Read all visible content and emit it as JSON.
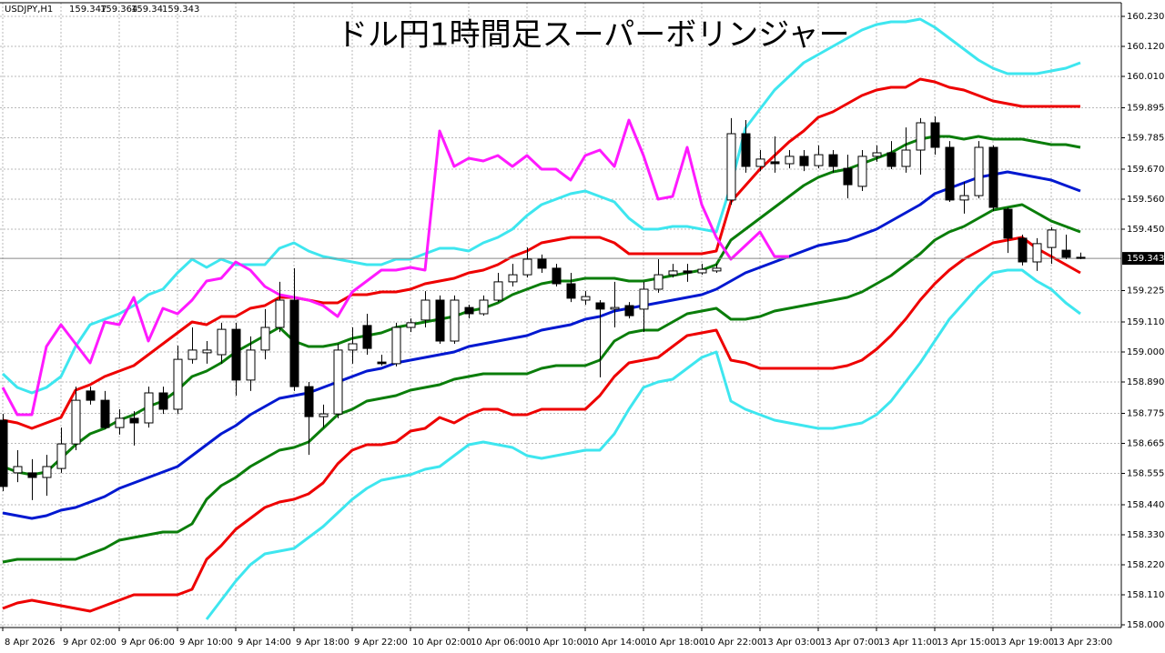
{
  "chart_data": {
    "type": "candlestick",
    "title": "ドル円1時間足スーパーボリンジャー",
    "symbol": "USDJPY,H1",
    "up_color": "#ffffff",
    "down_color": "#000000",
    "grid": true,
    "categories": [
      "8 Apr 2026",
      null,
      null,
      null,
      "9 Apr 02:00",
      null,
      null,
      null,
      "9 Apr 06:00",
      null,
      null,
      null,
      "9 Apr 10:00",
      null,
      null,
      null,
      "9 Apr 14:00",
      null,
      null,
      null,
      "9 Apr 18:00",
      null,
      null,
      null,
      "9 Apr 22:00",
      null,
      null,
      null,
      "10 Apr 02:00",
      null,
      null,
      null,
      "10 Apr 06:00",
      null,
      null,
      null,
      "10 Apr 10:00",
      null,
      null,
      null,
      "10 Apr 14:00",
      null,
      null,
      null,
      "10 Apr 18:00",
      null,
      null,
      null,
      "10 Apr 22:00",
      null,
      null,
      null,
      "13 Apr 03:00",
      null,
      null,
      null,
      "13 Apr 07:00",
      null,
      null,
      null,
      "13 Apr 11:00",
      null,
      null,
      null,
      "13 Apr 15:00",
      null,
      null,
      null,
      "13 Apr 19:00",
      null,
      null,
      null,
      "13 Apr 23:00",
      null,
      null
    ],
    "open": [
      158.75,
      158.557,
      158.557,
      158.54,
      158.573,
      158.663,
      158.857,
      158.823,
      158.723,
      158.757,
      158.74,
      158.85,
      158.79,
      158.973,
      158.997,
      158.99,
      159.083,
      158.897,
      159.007,
      159.09,
      159.19,
      158.873,
      158.763,
      158.773,
      159.007,
      159.097,
      158.963,
      158.957,
      159.09,
      159.117,
      159.19,
      159.04,
      159.163,
      159.14,
      159.19,
      159.257,
      159.283,
      159.34,
      159.307,
      159.25,
      159.19,
      159.18,
      159.157,
      159.17,
      159.157,
      159.23,
      159.283,
      159.297,
      159.29,
      159.297,
      159.557,
      159.8,
      159.68,
      159.697,
      159.69,
      159.717,
      159.683,
      159.723,
      159.673,
      159.607,
      159.717,
      159.73,
      159.68,
      159.74,
      159.84,
      159.75,
      159.557,
      159.573,
      159.75,
      159.523,
      159.417,
      159.33,
      159.383,
      159.373,
      159.347
    ],
    "high": [
      158.773,
      158.64,
      158.607,
      158.623,
      158.723,
      158.873,
      158.873,
      158.857,
      158.79,
      158.783,
      158.873,
      158.873,
      159.023,
      159.09,
      159.04,
      159.107,
      159.107,
      159.057,
      159.157,
      159.257,
      159.307,
      158.89,
      158.807,
      159.03,
      159.09,
      159.14,
      158.99,
      159.107,
      159.123,
      159.223,
      159.207,
      159.207,
      159.173,
      159.207,
      159.29,
      159.323,
      159.383,
      159.357,
      159.323,
      159.29,
      159.223,
      159.19,
      159.257,
      159.183,
      159.257,
      159.34,
      159.323,
      159.323,
      159.323,
      159.323,
      159.857,
      159.85,
      159.74,
      159.79,
      159.74,
      159.74,
      159.757,
      159.74,
      159.723,
      159.74,
      159.757,
      159.773,
      159.823,
      159.857,
      159.863,
      159.773,
      159.623,
      159.773,
      159.757,
      159.53,
      159.43,
      159.417,
      159.457,
      159.43,
      159.364
    ],
    "low": [
      158.49,
      158.523,
      158.457,
      158.473,
      158.557,
      158.64,
      158.807,
      158.717,
      158.697,
      158.657,
      158.723,
      158.773,
      158.773,
      158.957,
      158.957,
      158.957,
      158.84,
      158.857,
      158.973,
      159.073,
      158.857,
      158.623,
      158.723,
      158.757,
      158.957,
      158.99,
      158.95,
      158.947,
      159.073,
      159.09,
      159.03,
      159.03,
      159.123,
      159.133,
      159.183,
      159.24,
      159.273,
      159.29,
      159.24,
      159.183,
      159.173,
      158.907,
      159.09,
      159.123,
      159.073,
      159.217,
      159.273,
      159.257,
      159.283,
      159.29,
      159.54,
      159.657,
      159.663,
      159.657,
      159.673,
      159.663,
      159.673,
      159.657,
      159.563,
      159.59,
      159.697,
      159.67,
      159.657,
      159.65,
      159.723,
      159.55,
      159.507,
      159.563,
      159.517,
      159.363,
      159.317,
      159.297,
      159.323,
      159.34,
      159.34
    ],
    "close": [
      158.507,
      158.58,
      158.54,
      158.58,
      158.663,
      158.823,
      158.823,
      158.723,
      158.757,
      158.74,
      158.85,
      158.79,
      158.973,
      159.007,
      159.007,
      159.083,
      158.897,
      159.007,
      159.09,
      159.19,
      158.873,
      158.763,
      158.773,
      159.007,
      159.03,
      159.013,
      158.957,
      159.09,
      159.107,
      159.19,
      159.04,
      159.19,
      159.14,
      159.19,
      159.257,
      159.283,
      159.34,
      159.307,
      159.25,
      159.197,
      159.203,
      159.157,
      159.163,
      159.133,
      159.23,
      159.283,
      159.297,
      159.29,
      159.303,
      159.307,
      159.8,
      159.68,
      159.707,
      159.69,
      159.717,
      159.683,
      159.723,
      159.68,
      159.613,
      159.717,
      159.73,
      159.68,
      159.74,
      159.84,
      159.75,
      159.557,
      159.573,
      159.75,
      159.53,
      159.417,
      159.33,
      159.397,
      159.447,
      159.347,
      159.343
    ],
    "series": [
      {
        "color": "#3ee6ef",
        "values": [
          158.92,
          158.87,
          158.85,
          158.87,
          158.91,
          159.02,
          159.1,
          159.12,
          159.14,
          159.17,
          159.21,
          159.23,
          159.29,
          159.34,
          159.31,
          159.34,
          159.32,
          159.32,
          159.32,
          159.38,
          159.4,
          159.37,
          159.35,
          159.34,
          159.33,
          159.32,
          159.32,
          159.34,
          159.34,
          159.36,
          159.38,
          159.38,
          159.37,
          159.4,
          159.42,
          159.45,
          159.5,
          159.54,
          159.56,
          159.58,
          159.59,
          159.57,
          159.55,
          159.49,
          159.45,
          159.45,
          159.46,
          159.46,
          159.45,
          159.44,
          159.61,
          159.82,
          159.89,
          159.96,
          160.01,
          160.06,
          160.09,
          160.12,
          160.15,
          160.18,
          160.2,
          160.21,
          160.21,
          160.22,
          160.19,
          160.15,
          160.11,
          160.07,
          160.04,
          160.02,
          160.02,
          160.02,
          160.03,
          160.04,
          160.06
        ]
      },
      {
        "color": "#ee0000",
        "values": [
          158.75,
          158.74,
          158.72,
          158.74,
          158.76,
          158.86,
          158.88,
          158.91,
          158.93,
          158.95,
          158.99,
          159.03,
          159.07,
          159.11,
          159.1,
          159.13,
          159.13,
          159.16,
          159.17,
          159.2,
          159.2,
          159.19,
          159.18,
          159.18,
          159.21,
          159.21,
          159.22,
          159.22,
          159.23,
          159.25,
          159.26,
          159.27,
          159.29,
          159.3,
          159.32,
          159.35,
          159.37,
          159.4,
          159.41,
          159.42,
          159.42,
          159.42,
          159.4,
          159.36,
          159.36,
          159.36,
          159.36,
          159.36,
          159.36,
          159.37,
          159.55,
          159.61,
          159.67,
          159.72,
          159.77,
          159.81,
          159.86,
          159.88,
          159.91,
          159.94,
          159.96,
          159.97,
          159.97,
          160.0,
          159.99,
          159.97,
          159.96,
          159.94,
          159.92,
          159.91,
          159.9,
          159.9,
          159.9,
          159.9,
          159.9
        ]
      },
      {
        "color": "#0a7d0a",
        "values": [
          158.58,
          158.56,
          158.55,
          158.56,
          158.61,
          158.66,
          158.7,
          158.72,
          158.75,
          158.77,
          158.8,
          158.82,
          158.86,
          158.91,
          158.93,
          158.96,
          159.0,
          159.03,
          159.06,
          159.09,
          159.04,
          159.02,
          159.02,
          159.03,
          159.05,
          159.06,
          159.07,
          159.09,
          159.1,
          159.11,
          159.12,
          159.13,
          159.15,
          159.16,
          159.18,
          159.21,
          159.23,
          159.25,
          159.26,
          159.26,
          159.27,
          159.27,
          159.27,
          159.26,
          159.26,
          159.27,
          159.28,
          159.29,
          159.3,
          159.32,
          159.41,
          159.45,
          159.49,
          159.53,
          159.57,
          159.61,
          159.64,
          159.66,
          159.67,
          159.69,
          159.71,
          159.73,
          159.76,
          159.78,
          159.79,
          159.79,
          159.78,
          159.79,
          159.78,
          159.78,
          159.78,
          159.77,
          159.76,
          159.76,
          159.75
        ]
      },
      {
        "color": "#0018d0",
        "values": [
          158.41,
          158.4,
          158.39,
          158.4,
          158.42,
          158.43,
          158.45,
          158.47,
          158.5,
          158.52,
          158.54,
          158.56,
          158.58,
          158.62,
          158.66,
          158.7,
          158.73,
          158.77,
          158.8,
          158.83,
          158.84,
          158.85,
          158.87,
          158.89,
          158.91,
          158.93,
          158.94,
          158.96,
          158.97,
          158.98,
          158.99,
          159.0,
          159.02,
          159.03,
          159.04,
          159.05,
          159.06,
          159.08,
          159.09,
          159.1,
          159.12,
          159.13,
          159.15,
          159.16,
          159.17,
          159.18,
          159.19,
          159.2,
          159.21,
          159.23,
          159.26,
          159.29,
          159.31,
          159.33,
          159.35,
          159.37,
          159.39,
          159.4,
          159.41,
          159.43,
          159.45,
          159.48,
          159.51,
          159.54,
          159.58,
          159.6,
          159.62,
          159.64,
          159.65,
          159.66,
          159.65,
          159.64,
          159.63,
          159.61,
          159.59
        ]
      },
      {
        "color": "#0a7d0a",
        "values": [
          158.23,
          158.24,
          158.24,
          158.24,
          158.24,
          158.24,
          158.26,
          158.28,
          158.31,
          158.32,
          158.33,
          158.34,
          158.34,
          158.37,
          158.46,
          158.51,
          158.54,
          158.58,
          158.61,
          158.64,
          158.65,
          158.67,
          158.72,
          158.77,
          158.79,
          158.82,
          158.83,
          158.84,
          158.86,
          158.87,
          158.88,
          158.9,
          158.91,
          158.92,
          158.92,
          158.92,
          158.92,
          158.94,
          158.95,
          158.95,
          158.95,
          158.97,
          159.04,
          159.07,
          159.08,
          159.08,
          159.11,
          159.14,
          159.15,
          159.16,
          159.12,
          159.12,
          159.13,
          159.15,
          159.16,
          159.17,
          159.18,
          159.19,
          159.2,
          159.22,
          159.25,
          159.28,
          159.32,
          159.36,
          159.41,
          159.44,
          159.46,
          159.49,
          159.52,
          159.53,
          159.54,
          159.51,
          159.48,
          159.46,
          159.44
        ]
      },
      {
        "color": "#ee0000",
        "values": [
          158.06,
          158.08,
          158.09,
          158.08,
          158.07,
          158.06,
          158.05,
          158.07,
          158.09,
          158.11,
          158.11,
          158.11,
          158.11,
          158.13,
          158.24,
          158.29,
          158.35,
          158.39,
          158.43,
          158.45,
          158.46,
          158.48,
          158.52,
          158.59,
          158.64,
          158.66,
          158.66,
          158.67,
          158.71,
          158.72,
          158.76,
          158.74,
          158.77,
          158.79,
          158.79,
          158.77,
          158.77,
          158.79,
          158.79,
          158.79,
          158.79,
          158.84,
          158.91,
          158.96,
          158.97,
          158.98,
          159.02,
          159.06,
          159.07,
          159.08,
          158.97,
          158.96,
          158.94,
          158.94,
          158.94,
          158.94,
          158.94,
          158.94,
          158.95,
          158.97,
          159.01,
          159.06,
          159.12,
          159.19,
          159.25,
          159.3,
          159.34,
          159.37,
          159.4,
          159.41,
          159.42,
          159.38,
          159.35,
          159.32,
          159.29
        ]
      },
      {
        "color": "#3ee6ef",
        "values": [
          null,
          null,
          null,
          null,
          null,
          null,
          null,
          null,
          null,
          null,
          null,
          null,
          null,
          null,
          158.02,
          158.09,
          158.16,
          158.22,
          158.26,
          158.27,
          158.28,
          158.32,
          158.36,
          158.41,
          158.46,
          158.5,
          158.53,
          158.54,
          158.55,
          158.57,
          158.58,
          158.62,
          158.66,
          158.67,
          158.66,
          158.65,
          158.62,
          158.61,
          158.62,
          158.63,
          158.64,
          158.64,
          158.7,
          158.79,
          158.87,
          158.89,
          158.9,
          158.94,
          158.98,
          159.0,
          158.82,
          158.79,
          158.77,
          158.75,
          158.74,
          158.73,
          158.72,
          158.72,
          158.73,
          158.74,
          158.77,
          158.82,
          158.89,
          158.96,
          159.04,
          159.12,
          159.18,
          159.24,
          159.29,
          159.3,
          159.3,
          159.26,
          159.23,
          159.18,
          159.14
        ]
      },
      {
        "color": "#ff1aff",
        "values": [
          158.87,
          158.77,
          158.77,
          159.02,
          159.1,
          159.03,
          158.96,
          159.11,
          159.1,
          159.2,
          159.04,
          159.16,
          159.14,
          159.19,
          159.26,
          159.27,
          159.33,
          159.3,
          159.24,
          159.21,
          159.2,
          159.19,
          159.17,
          159.13,
          159.22,
          159.26,
          159.3,
          159.3,
          159.31,
          159.3,
          159.81,
          159.68,
          159.71,
          159.7,
          159.72,
          159.68,
          159.72,
          159.67,
          159.67,
          159.63,
          159.72,
          159.74,
          159.68,
          159.85,
          159.72,
          159.56,
          159.57,
          159.75,
          159.54,
          159.42,
          159.34,
          159.39,
          159.44,
          159.35,
          159.35,
          null,
          null,
          null,
          null,
          null,
          null,
          null,
          null,
          null,
          null,
          null,
          null,
          null,
          null,
          null,
          null,
          null,
          null,
          null,
          null
        ]
      }
    ],
    "ylim": [
      157.99,
      160.28
    ],
    "yticks": [
      {
        "value": 160.23,
        "label": "160.230"
      },
      {
        "value": 160.12,
        "label": "160.120"
      },
      {
        "value": 160.01,
        "label": "160.010"
      },
      {
        "value": 159.895,
        "label": "159.895"
      },
      {
        "value": 159.785,
        "label": "159.785"
      },
      {
        "value": 159.67,
        "label": "159.670"
      },
      {
        "value": 159.56,
        "label": "159.560"
      },
      {
        "value": 159.45,
        "label": "159.450"
      },
      {
        "value": 159.225,
        "label": "159.225"
      },
      {
        "value": 159.11,
        "label": "159.110"
      },
      {
        "value": 159.0,
        "label": "159.000"
      },
      {
        "value": 158.89,
        "label": "158.890"
      },
      {
        "value": 158.775,
        "label": "158.775"
      },
      {
        "value": 158.665,
        "label": "158.665"
      },
      {
        "value": 158.555,
        "label": "158.555"
      },
      {
        "value": 158.44,
        "label": "158.440"
      },
      {
        "value": 158.33,
        "label": "158.330"
      },
      {
        "value": 158.22,
        "label": "158.220"
      },
      {
        "value": 158.11,
        "label": "158.110"
      },
      {
        "value": 158.0,
        "label": "158.000"
      }
    ]
  }
}
